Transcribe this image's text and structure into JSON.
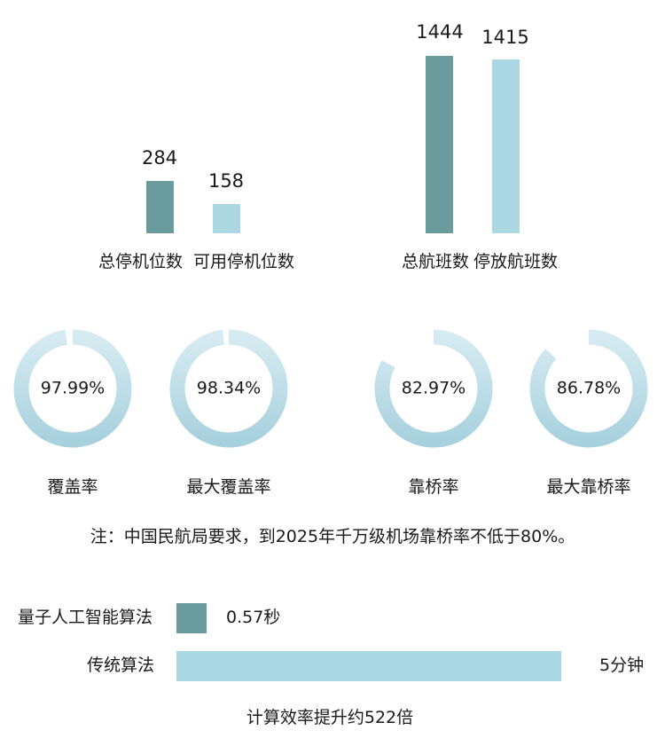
{
  "colors": {
    "dark": "#6a9c9e",
    "light": "#abd7e2",
    "ring_top": "#d6ebf1",
    "ring_bottom": "#a8d1de"
  },
  "chart_data": [
    {
      "type": "bar",
      "categories": [
        "总停机位数",
        "可用停机位数"
      ],
      "values": [
        284,
        158
      ],
      "value_labels": [
        "284",
        "158"
      ]
    },
    {
      "type": "bar",
      "categories": [
        "总航班数",
        "停放航班数"
      ],
      "values": [
        1444,
        1415
      ],
      "value_labels": [
        "1444",
        "1415"
      ]
    },
    {
      "type": "pie",
      "items": [
        {
          "label": "覆盖率",
          "value": 97.99,
          "display": "97.99%"
        },
        {
          "label": "最大覆盖率",
          "value": 98.34,
          "display": "98.34%"
        },
        {
          "label": "靠桥率",
          "value": 82.97,
          "display": "82.97%"
        },
        {
          "label": "最大靠桥率",
          "value": 86.78,
          "display": "86.78%"
        }
      ]
    },
    {
      "type": "bar",
      "orientation": "horizontal",
      "categories": [
        "量子人工智能算法",
        "传统算法"
      ],
      "values_seconds": [
        0.57,
        300
      ],
      "value_labels": [
        "0.57秒",
        "5分钟"
      ]
    }
  ],
  "note": "注：中国民航局要求，到2025年千万级机场靠桥率不低于80%。",
  "footer": "计算效率提升约522倍"
}
